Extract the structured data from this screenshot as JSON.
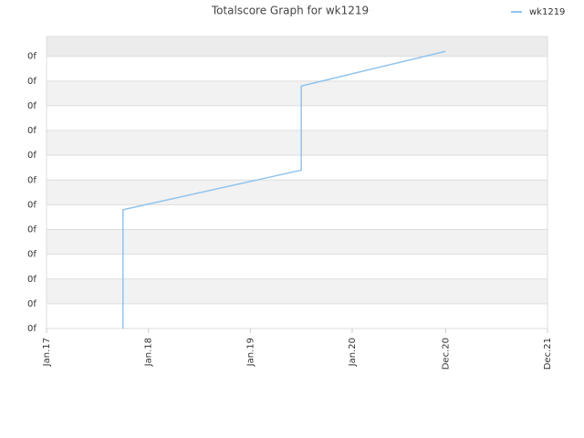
{
  "chart_data": {
    "type": "line",
    "title": "Totalscore Graph for wk1219",
    "x": [
      "2017-10",
      "2017-10",
      "2019-07",
      "2019-07",
      "2020-12"
    ],
    "series": [
      {
        "name": "wk1219",
        "color": "#90c4ee",
        "values": [
          0,
          4.8,
          6.4,
          9.8,
          11.2
        ]
      }
    ],
    "xlim": [
      "2017-01",
      "2021-12"
    ],
    "xticks": [
      {
        "value": "2017-01",
        "label": "Jan.17"
      },
      {
        "value": "2018-01",
        "label": "Jan.18"
      },
      {
        "value": "2019-01",
        "label": "Jan.19"
      },
      {
        "value": "2020-01",
        "label": "Jan.20"
      },
      {
        "value": "2020-12",
        "label": "Dec.20"
      },
      {
        "value": "2021-12",
        "label": "Dec.21"
      }
    ],
    "ylim": [
      0,
      11.8
    ],
    "yticks": [
      {
        "value": 0,
        "label": "0f"
      },
      {
        "value": 1,
        "label": "0f"
      },
      {
        "value": 2,
        "label": "0f"
      },
      {
        "value": 3,
        "label": "0f"
      },
      {
        "value": 4,
        "label": "0f"
      },
      {
        "value": 5,
        "label": "0f"
      },
      {
        "value": 6,
        "label": "0f"
      },
      {
        "value": 7,
        "label": "0f"
      },
      {
        "value": 8,
        "label": "0f"
      },
      {
        "value": 9,
        "label": "0f"
      },
      {
        "value": 10,
        "label": "0f"
      },
      {
        "value": 11,
        "label": "0f"
      }
    ],
    "grid": true,
    "legend": "top-right"
  }
}
